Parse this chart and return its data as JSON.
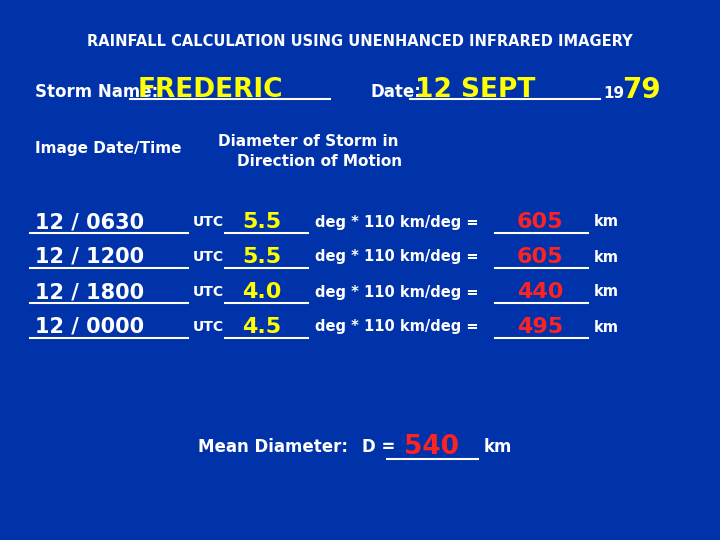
{
  "bg_color": "#0033aa",
  "title": "RAINFALL CALCULATION USING UNENHANCED INFRARED IMAGERY",
  "title_color": "#ffffff",
  "title_fontsize": 10,
  "storm_label": "Storm Name:",
  "storm_name": "FREDERIC",
  "date_label": "Date:",
  "date_value": "12 SEPT",
  "year_prefix": "19",
  "year_value": "79",
  "white": "#ffffff",
  "yellow": "#ffff00",
  "red": "#ff2222",
  "header_col1": "Image Date/Time",
  "header_col2_line1": "Diameter of Storm in",
  "header_col2_line2": "Direction of Motion",
  "rows": [
    {
      "datetime": "12 / 0630",
      "deg": "5.5",
      "km": "605"
    },
    {
      "datetime": "12 / 1200",
      "deg": "5.5",
      "km": "605"
    },
    {
      "datetime": "12 / 1800",
      "deg": "4.0",
      "km": "440"
    },
    {
      "datetime": "12 / 0000",
      "deg": "4.5",
      "km": "495"
    }
  ],
  "mean_label": "Mean Diameter:",
  "mean_eq": "D =",
  "mean_value": "540",
  "mean_unit": "km",
  "formula_text": "deg * 110 km/deg =",
  "utc_text": "UTC",
  "km_text": "km",
  "figwidth": 7.2,
  "figheight": 5.4,
  "dpi": 100
}
